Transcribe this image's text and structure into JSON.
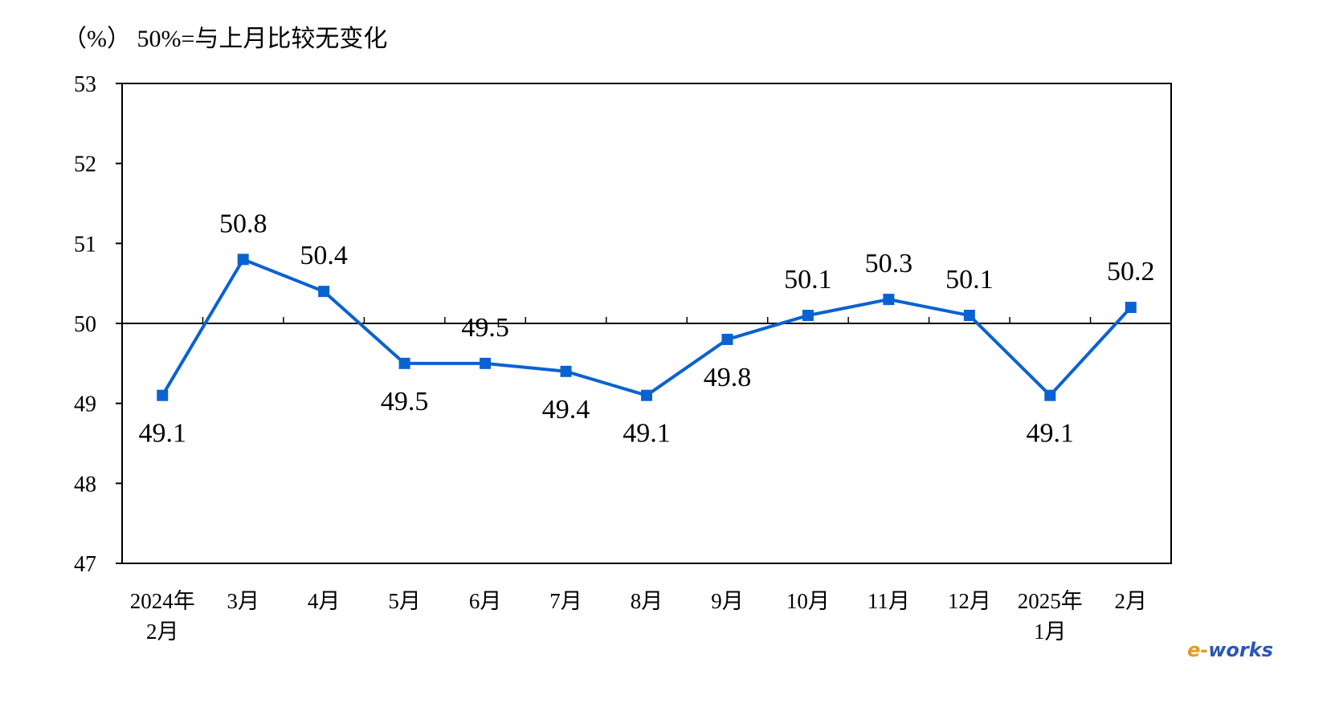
{
  "chart_data": {
    "type": "line",
    "unit_note": "（%） 50%=与上月比较无变化",
    "x": [
      [
        "2024年",
        "2月"
      ],
      [
        "3月"
      ],
      [
        "4月"
      ],
      [
        "5月"
      ],
      [
        "6月"
      ],
      [
        "7月"
      ],
      [
        "8月"
      ],
      [
        "9月"
      ],
      [
        "10月"
      ],
      [
        "11月"
      ],
      [
        "12月"
      ],
      [
        "2025年",
        "1月"
      ],
      [
        "2月"
      ]
    ],
    "series": [
      {
        "values": [
          49.1,
          50.8,
          50.4,
          49.5,
          49.5,
          49.4,
          49.1,
          49.8,
          50.1,
          50.3,
          50.1,
          49.1,
          50.2
        ],
        "labels": [
          "49.1",
          "50.8",
          "50.4",
          "49.5",
          "49.5",
          "49.4",
          "49.1",
          "49.8",
          "50.1",
          "50.3",
          "50.1",
          "49.1",
          "50.2"
        ],
        "color": "#0a62d0"
      }
    ],
    "ylim": [
      47,
      53
    ],
    "yticks": [
      "47",
      "48",
      "49",
      "50",
      "51",
      "52",
      "53"
    ],
    "reference_line": 50,
    "grid": false,
    "legend": "none"
  },
  "watermark": {
    "text": "e-works",
    "colors": [
      "#e89a1c",
      "#2a56b8"
    ]
  }
}
